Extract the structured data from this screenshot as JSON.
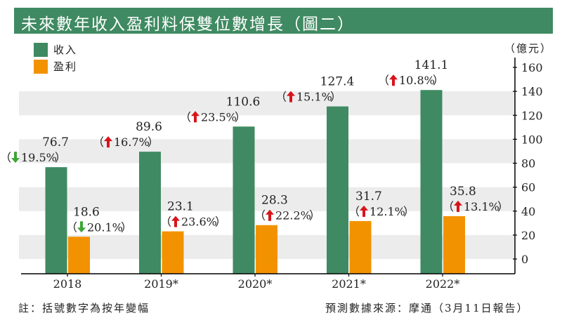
{
  "title": "未來數年收入盈利料保雙位數增長（圖二）",
  "unit_label": "（億元）",
  "footer": {
    "note": "註：括號數字為按年變幅",
    "source": "預測數據來源：摩通（3月11日報告）"
  },
  "colors": {
    "title_bg": "#3f8a62",
    "revenue": "#3f8a62",
    "profit": "#f39200",
    "band": "#ececec",
    "up_arrow": "#d7141a",
    "down_arrow": "#3fa535"
  },
  "chart_data": {
    "type": "bar",
    "title": "未來數年收入盈利料保雙位數增長（圖二）",
    "xlabel": "",
    "ylabel": "（億元）",
    "categories": [
      "2018",
      "2019*",
      "2020*",
      "2021*",
      "2022*"
    ],
    "series": [
      {
        "name": "收入",
        "color": "#3f8a62",
        "values": [
          76.7,
          89.6,
          110.6,
          127.4,
          141.1
        ],
        "value_labels": [
          "76.7",
          "89.6",
          "110.6",
          "127.4",
          "141.1"
        ],
        "change_labels": [
          "19.5%",
          "16.7%",
          "23.5%",
          "15.1%",
          "10.8%"
        ],
        "change_direction": [
          "down",
          "up",
          "up",
          "up",
          "up"
        ]
      },
      {
        "name": "盈利",
        "color": "#f39200",
        "values": [
          18.6,
          23.1,
          28.3,
          31.7,
          35.8
        ],
        "value_labels": [
          "18.6",
          "23.1",
          "28.3",
          "31.7",
          "35.8"
        ],
        "change_labels": [
          "20.1%",
          "23.6%",
          "22.2%",
          "12.1%",
          "13.1%"
        ],
        "change_direction": [
          "down",
          "up",
          "up",
          "up",
          "up"
        ]
      }
    ],
    "y_ticks": [
      "0",
      "20",
      "40",
      "60",
      "80",
      "100",
      "120",
      "140",
      "160"
    ],
    "y_tick_values": [
      0,
      20,
      40,
      60,
      80,
      100,
      120,
      140,
      160
    ],
    "ylim": [
      -12,
      165
    ],
    "y_axis_side": "right",
    "grid": "alternating horizontal bands",
    "legend": {
      "placement": "top-left",
      "entries": [
        "收入",
        "盈利"
      ]
    }
  }
}
